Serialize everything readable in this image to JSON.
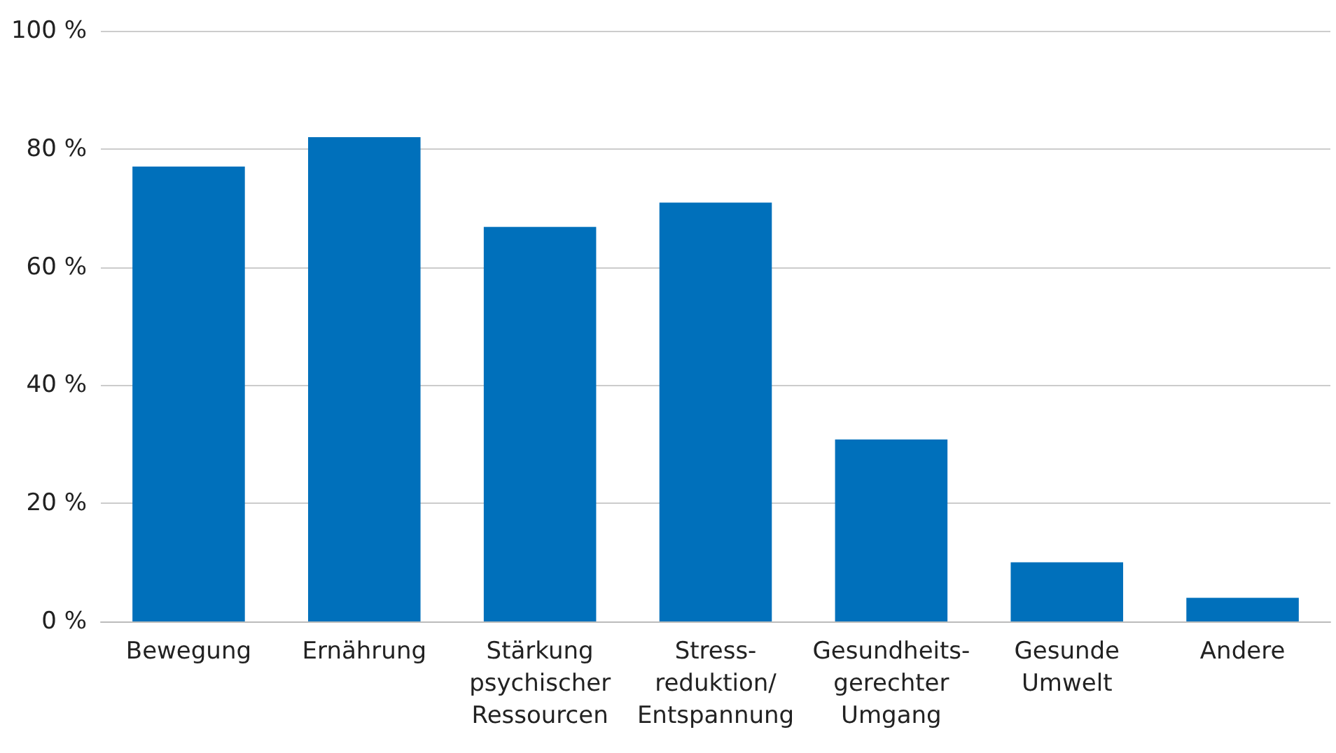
{
  "chart_data": {
    "type": "bar",
    "categories": [
      "Bewegung",
      "Ernährung",
      "Stärkung\npsychischer\nRessourcen",
      "Stress-\nreduktion/\nEntspannung",
      "Gesundheits-\ngerechter\nUmgang",
      "Gesunde\nUmwelt",
      "Andere"
    ],
    "values": [
      77,
      82,
      66.8,
      70.9,
      30.8,
      10,
      4
    ],
    "color": "#0070bb",
    "ylim": [
      0,
      100
    ],
    "yticks": [
      {
        "value": 0,
        "label": "0 %"
      },
      {
        "value": 20,
        "label": "20 %"
      },
      {
        "value": 40,
        "label": "40 %"
      },
      {
        "value": 60,
        "label": "60 %"
      },
      {
        "value": 80,
        "label": "80 %"
      },
      {
        "value": 100,
        "label": "100 %"
      }
    ],
    "grid": "y"
  }
}
